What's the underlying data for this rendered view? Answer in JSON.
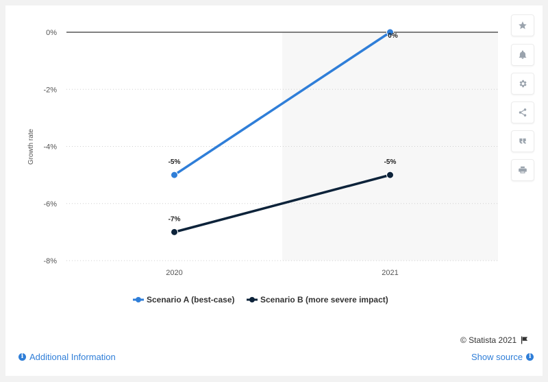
{
  "chart_data": {
    "type": "line",
    "categories": [
      "2020",
      "2021"
    ],
    "series": [
      {
        "name": "Scenario A (best-case)",
        "values": [
          -5,
          0
        ],
        "labels": [
          "-5%",
          "0%"
        ],
        "color": "#2f7ed8"
      },
      {
        "name": "Scenario B (more severe impact)",
        "values": [
          -7,
          -5
        ],
        "labels": [
          "-7%",
          "-5%"
        ],
        "color": "#0d233a"
      }
    ],
    "ylabel": "Growth rate",
    "ylim": [
      -8,
      0
    ],
    "yticks": [
      "0%",
      "-2%",
      "-4%",
      "-6%",
      "-8%"
    ],
    "grid": true,
    "legend_position": "bottom",
    "shaded_region_category": "2021",
    "shade_color": "#f7f7f7"
  },
  "credit": {
    "text": "© Statista 2021"
  },
  "footer": {
    "additional_info": "Additional Information",
    "show_source": "Show source"
  },
  "sidebar": {
    "icons": [
      "star-icon",
      "bell-icon",
      "gear-icon",
      "share-icon",
      "quote-icon",
      "print-icon"
    ]
  }
}
